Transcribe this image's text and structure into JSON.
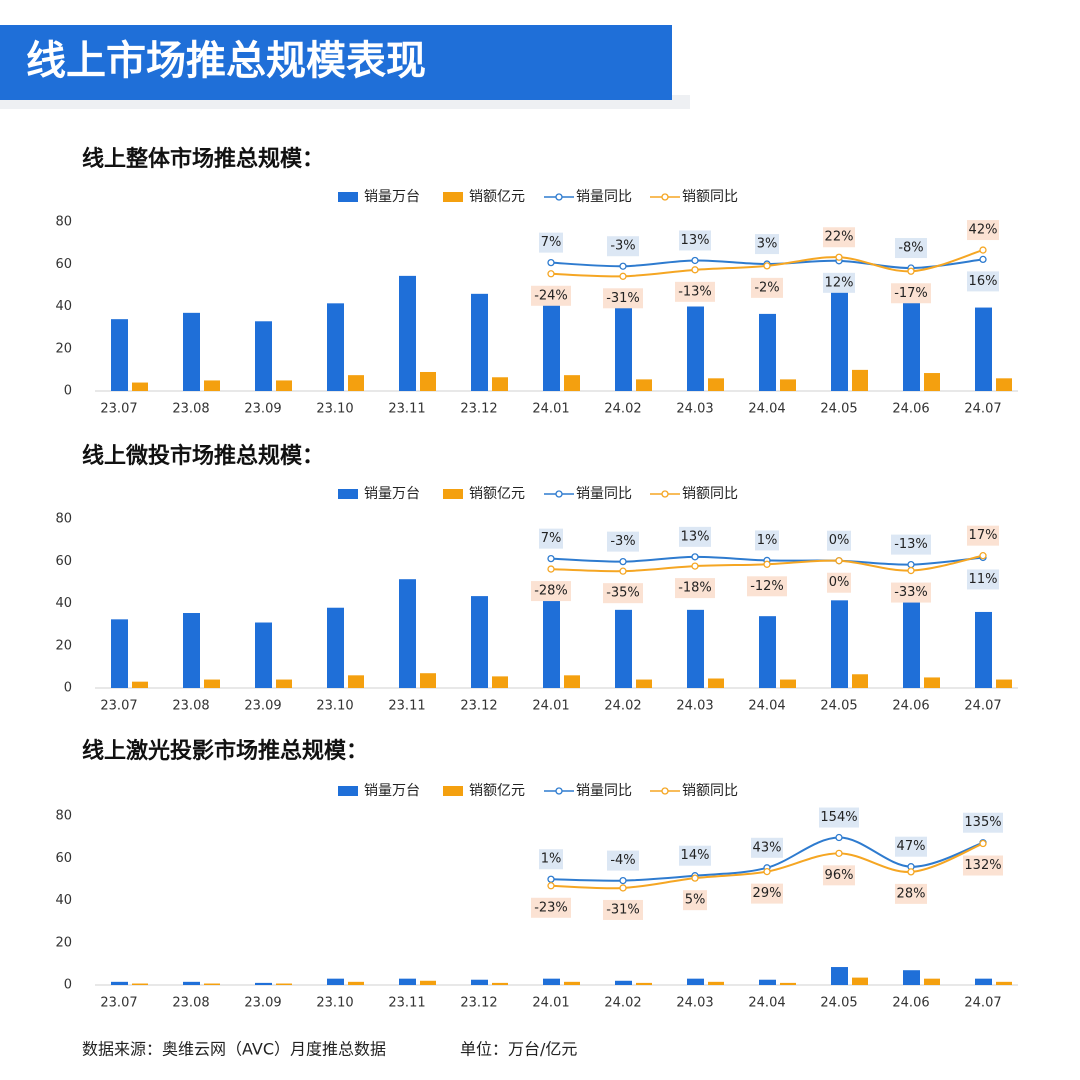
{
  "header": {
    "title": "线上市场推总规模表现"
  },
  "chart_data": [
    {
      "type": "bar",
      "title": "线上整体市场推总规模：",
      "categories": [
        "23.07",
        "23.08",
        "23.09",
        "23.10",
        "23.11",
        "23.12",
        "24.01",
        "24.02",
        "24.03",
        "24.04",
        "24.05",
        "24.06",
        "24.07"
      ],
      "ylim": [
        0,
        80
      ],
      "yticks": [
        0,
        20,
        40,
        60,
        80
      ],
      "y2lim": [
        -350,
        120
      ],
      "series": [
        {
          "name": "销量万台",
          "type": "bar",
          "color": "#1f6fd8",
          "values": [
            34,
            37,
            33,
            41.5,
            54.5,
            46,
            46,
            39.5,
            40,
            36.5,
            49.5,
            47,
            39.5
          ]
        },
        {
          "name": "销额亿元",
          "type": "bar",
          "color": "#f4a00f",
          "values": [
            4,
            5,
            5,
            7.5,
            9,
            6.5,
            7.5,
            5.5,
            6,
            5.5,
            10,
            8.5,
            6
          ]
        },
        {
          "name": "销量同比",
          "type": "line",
          "axis": "y2",
          "color": "#2e7bcf",
          "values": [
            null,
            null,
            null,
            null,
            null,
            null,
            7,
            -3,
            13,
            3,
            12,
            -8,
            16
          ],
          "value_labels": [
            null,
            null,
            null,
            null,
            null,
            null,
            "7%",
            "-3%",
            "13%",
            "3%",
            "12%",
            "-8%",
            "16%"
          ]
        },
        {
          "name": "销额同比",
          "type": "line",
          "axis": "y2",
          "color": "#f5a623",
          "values": [
            null,
            null,
            null,
            null,
            null,
            null,
            -24,
            -31,
            -13,
            -2,
            22,
            -17,
            42
          ],
          "value_labels": [
            null,
            null,
            null,
            null,
            null,
            null,
            "-24%",
            "-31%",
            "-13%",
            "-2%",
            "22%",
            "-17%",
            "42%"
          ]
        }
      ]
    },
    {
      "type": "bar",
      "title": "线上微投市场推总规模：",
      "categories": [
        "23.07",
        "23.08",
        "23.09",
        "23.10",
        "23.11",
        "23.12",
        "24.01",
        "24.02",
        "24.03",
        "24.04",
        "24.05",
        "24.06",
        "24.07"
      ],
      "ylim": [
        0,
        80
      ],
      "yticks": [
        0,
        20,
        40,
        60,
        80
      ],
      "y2lim": [
        -427,
        140
      ],
      "series": [
        {
          "name": "销量万台",
          "type": "bar",
          "color": "#1f6fd8",
          "values": [
            32.5,
            35.5,
            31,
            38,
            51.5,
            43.5,
            45,
            37,
            37,
            34,
            41.5,
            44,
            36
          ]
        },
        {
          "name": "销额亿元",
          "type": "bar",
          "color": "#f4a00f",
          "values": [
            3,
            4,
            4,
            6,
            7,
            5.5,
            6,
            4,
            4.5,
            4,
            6.5,
            5,
            4
          ]
        },
        {
          "name": "销量同比",
          "type": "line",
          "axis": "y2",
          "color": "#2e7bcf",
          "values": [
            null,
            null,
            null,
            null,
            null,
            null,
            7,
            -3,
            13,
            1,
            0,
            -13,
            11
          ],
          "value_labels": [
            null,
            null,
            null,
            null,
            null,
            null,
            "7%",
            "-3%",
            "13%",
            "1%",
            "0%",
            "-13%",
            "11%"
          ]
        },
        {
          "name": "销额同比",
          "type": "line",
          "axis": "y2",
          "color": "#f5a623",
          "values": [
            null,
            null,
            null,
            null,
            null,
            null,
            -28,
            -35,
            -18,
            -12,
            0,
            -33,
            17
          ],
          "value_labels": [
            null,
            null,
            null,
            null,
            null,
            null,
            "-28%",
            "-35%",
            "-18%",
            "-12%",
            "0%",
            "-33%",
            "17%"
          ]
        }
      ]
    },
    {
      "type": "bar",
      "title": "线上激光投影市场推总规模：",
      "categories": [
        "23.07",
        "23.08",
        "23.09",
        "23.10",
        "23.11",
        "23.12",
        "24.01",
        "24.02",
        "24.03",
        "24.04",
        "24.05",
        "24.06",
        "24.07"
      ],
      "ylim": [
        0,
        80
      ],
      "yticks": [
        0,
        20,
        40,
        60,
        80
      ],
      "y2lim": [
        -387,
        233
      ],
      "series": [
        {
          "name": "销量万台",
          "type": "bar",
          "color": "#1f6fd8",
          "values": [
            1.5,
            1.5,
            1,
            3,
            3,
            2.5,
            3,
            2,
            3,
            2.5,
            8.5,
            7,
            3
          ]
        },
        {
          "name": "销额亿元",
          "type": "bar",
          "color": "#f4a00f",
          "values": [
            0.7,
            0.7,
            0.7,
            1.5,
            2,
            1,
            1.5,
            1,
            1.5,
            1,
            3.5,
            3,
            1.5
          ]
        },
        {
          "name": "销量同比",
          "type": "line",
          "axis": "y2",
          "color": "#2e7bcf",
          "values": [
            null,
            null,
            null,
            null,
            null,
            null,
            1,
            -4,
            14,
            43,
            154,
            47,
            135
          ],
          "value_labels": [
            null,
            null,
            null,
            null,
            null,
            null,
            "1%",
            "-4%",
            "14%",
            "43%",
            "154%",
            "47%",
            "135%"
          ]
        },
        {
          "name": "销额同比",
          "type": "line",
          "axis": "y2",
          "color": "#f5a623",
          "values": [
            null,
            null,
            null,
            null,
            null,
            null,
            -23,
            -31,
            5,
            29,
            96,
            28,
            132
          ],
          "value_labels": [
            null,
            null,
            null,
            null,
            null,
            null,
            "-23%",
            "-31%",
            "5%",
            "29%",
            "96%",
            "28%",
            "132%"
          ]
        }
      ]
    }
  ],
  "footer": {
    "source": "数据来源：奥维云网（AVC）月度推总数据",
    "unit": "单位：万台/亿元"
  }
}
